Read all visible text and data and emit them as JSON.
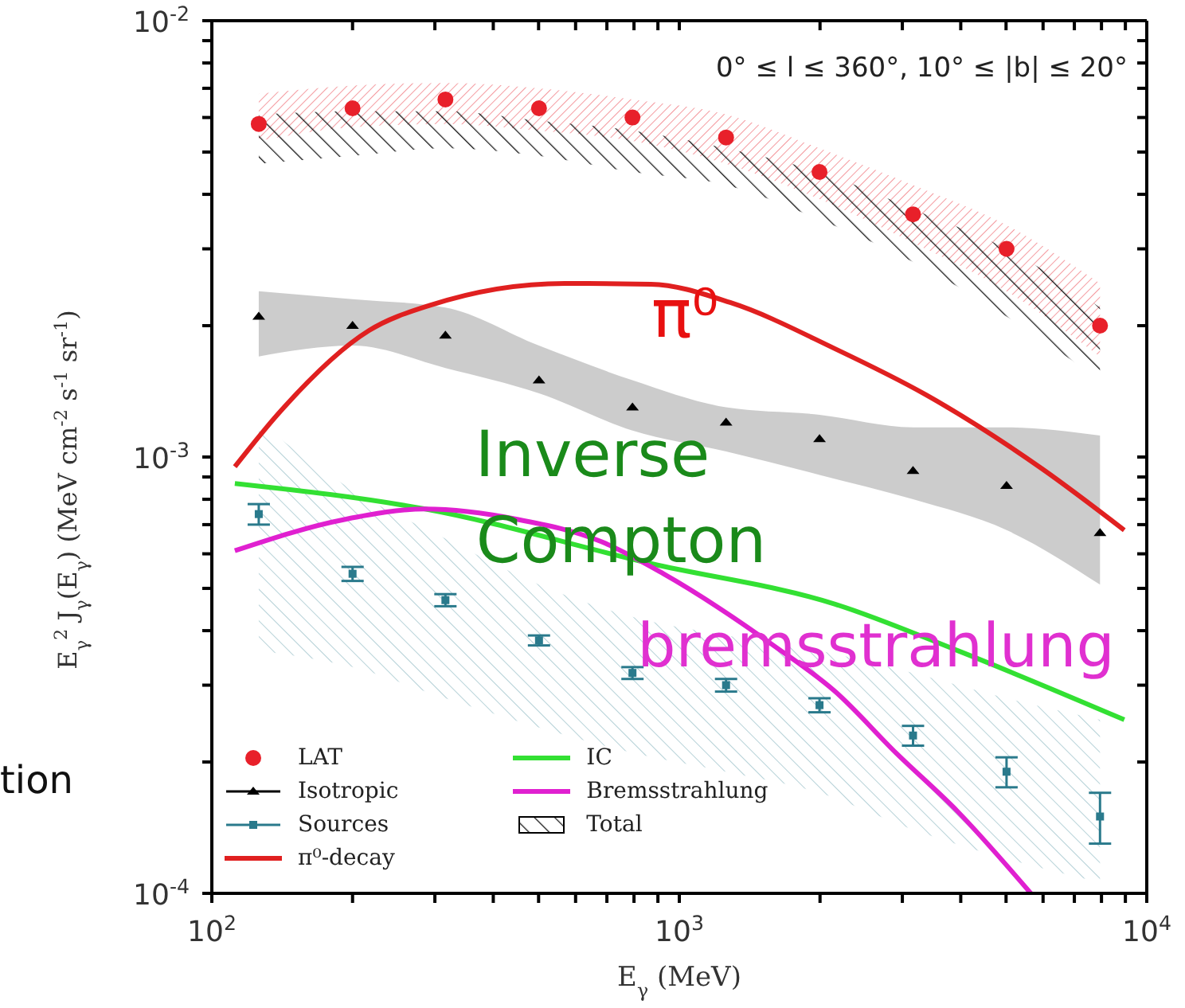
{
  "chart_data": {
    "type": "scatter",
    "log": "xy",
    "legend": "bottom left",
    "xlabel": "E$_{γ}$ (MeV)",
    "ylabel": "E$_{γ}$$^{2}$ J$_{γ}$(E$_{γ}$) (MeV cm$^{-2}$ s$^{-1}$ sr$^{-1}$)",
    "xlim": [
      100,
      10000
    ],
    "ylim": [
      0.0001,
      0.01
    ],
    "xticks": [
      {
        "value": 100,
        "label": "10$^{2}$"
      },
      {
        "value": 200,
        "label": null
      },
      {
        "value": 300,
        "label": null
      },
      {
        "value": 400,
        "label": null
      },
      {
        "value": 500,
        "label": null
      },
      {
        "value": 600,
        "label": null
      },
      {
        "value": 700,
        "label": null
      },
      {
        "value": 800,
        "label": null
      },
      {
        "value": 900,
        "label": null
      },
      {
        "value": 1000,
        "label": "10$^{3}$"
      },
      {
        "value": 2000,
        "label": null
      },
      {
        "value": 3000,
        "label": null
      },
      {
        "value": 4000,
        "label": null
      },
      {
        "value": 5000,
        "label": null
      },
      {
        "value": 6000,
        "label": null
      },
      {
        "value": 7000,
        "label": null
      },
      {
        "value": 8000,
        "label": null
      },
      {
        "value": 9000,
        "label": null
      },
      {
        "value": 10000,
        "label": "10$^{4}$"
      }
    ],
    "yticks": [
      {
        "value": 0.0001,
        "label": "10$^{-4}$"
      },
      {
        "value": 0.0002,
        "label": null
      },
      {
        "value": 0.0003,
        "label": null
      },
      {
        "value": 0.0004,
        "label": null
      },
      {
        "value": 0.0005,
        "label": null
      },
      {
        "value": 0.0006,
        "label": null
      },
      {
        "value": 0.0007,
        "label": null
      },
      {
        "value": 0.0008,
        "label": null
      },
      {
        "value": 0.0009,
        "label": null
      },
      {
        "value": 0.001,
        "label": "10$^{-3}$"
      },
      {
        "value": 0.002,
        "label": null
      },
      {
        "value": 0.003,
        "label": null
      },
      {
        "value": 0.004,
        "label": null
      },
      {
        "value": 0.005,
        "label": null
      },
      {
        "value": 0.006,
        "label": null
      },
      {
        "value": 0.007,
        "label": null
      },
      {
        "value": 0.008,
        "label": null
      },
      {
        "value": 0.009,
        "label": null
      },
      {
        "value": 0.01,
        "label": "10$^{-2}$"
      }
    ],
    "x": [
      126,
      200,
      316,
      501,
      794,
      1259,
      1995,
      3162,
      5012,
      7943
    ],
    "series": [
      {
        "name": "LAT",
        "type": "scatter",
        "marker": "circle",
        "color": "#e8202a",
        "values": [
          0.0058,
          0.0063,
          0.0066,
          0.0063,
          0.006,
          0.0054,
          0.0045,
          0.0036,
          0.003,
          0.002
        ],
        "lower": [
          0.0053,
          0.0057,
          0.0058,
          0.0056,
          0.0053,
          0.0047,
          0.0039,
          0.0031,
          0.0024,
          0.0017
        ],
        "upper": [
          0.0068,
          0.0071,
          0.0072,
          0.007,
          0.0066,
          0.0061,
          0.0051,
          0.0042,
          0.0034,
          0.0025
        ]
      },
      {
        "name": "Isotropic",
        "type": "scatter",
        "marker": "triangle",
        "color": "#000000",
        "values": [
          0.0021,
          0.002,
          0.0019,
          0.0015,
          0.0013,
          0.0012,
          0.0011,
          0.00093,
          0.00086,
          0.00067
        ],
        "lower": [
          0.0017,
          0.0018,
          0.0016,
          0.0014,
          0.00115,
          0.00103,
          0.00091,
          0.0008,
          0.00068,
          0.00051
        ],
        "upper": [
          0.0024,
          0.0023,
          0.0022,
          0.0018,
          0.0015,
          0.0013,
          0.00125,
          0.00117,
          0.00117,
          0.00112
        ]
      },
      {
        "name": "Sources",
        "type": "scatter",
        "marker": "square",
        "color": "#2a7a8c",
        "values": [
          0.00074,
          0.00054,
          0.00047,
          0.00038,
          0.00032,
          0.0003,
          0.00027,
          0.00023,
          0.00019,
          0.00015
        ],
        "errors": [
          4e-05,
          2e-05,
          1.5e-05,
          1e-05,
          1e-05,
          1e-05,
          1e-05,
          1.2e-05,
          1.5e-05,
          2e-05
        ],
        "lower": [
          0.00036,
          0.00033,
          0.00028,
          0.00024,
          0.00021,
          0.00019,
          0.00017,
          0.00014,
          0.00012,
          0.000106
        ],
        "upper": [
          0.0012,
          0.00084,
          0.00065,
          0.00051,
          0.00043,
          0.00039,
          0.00036,
          0.00032,
          0.00028,
          0.00025
        ]
      },
      {
        "name": "π⁰-decay",
        "type": "line",
        "color": "#e02020",
        "x": [
          112,
          139,
          217,
          294,
          569,
          869,
          1285,
          2155,
          3365,
          5970,
          8950
        ],
        "values": [
          0.00095,
          0.00126,
          0.00195,
          0.00223,
          0.0025,
          0.00249,
          0.00226,
          0.00177,
          0.00139,
          0.00094,
          0.00068
        ]
      },
      {
        "name": "IC",
        "type": "line",
        "color": "#33e033",
        "x": [
          112,
          286,
          869,
          2155,
          3940,
          8950
        ],
        "values": [
          0.00087,
          0.00076,
          0.00057,
          0.00046,
          0.00036,
          0.00025
        ]
      },
      {
        "name": "Bremsstrahlung",
        "type": "line",
        "color": "#e020d0",
        "x": [
          112,
          193,
          286,
          450,
          681,
          925,
          1590,
          2155,
          2905,
          3940,
          5650
        ],
        "values": [
          0.00061,
          0.00072,
          0.00076,
          0.00072,
          0.00064,
          0.00054,
          0.00037,
          0.00029,
          0.00021,
          0.000154,
          0.0001
        ]
      },
      {
        "name": "Total",
        "type": "area",
        "color": "#000000",
        "values": [
          null,
          null,
          null,
          null,
          null,
          null,
          null,
          null,
          null,
          null
        ],
        "lower": [
          0.0047,
          0.0049,
          0.0051,
          0.0049,
          0.0045,
          0.0042,
          0.0035,
          0.0028,
          0.0021,
          0.0015
        ],
        "upper": [
          0.0061,
          0.0062,
          0.0062,
          0.0059,
          0.0056,
          0.0051,
          0.0045,
          0.0037,
          0.003,
          0.0022
        ]
      }
    ],
    "annotations": [
      "0° ≤ l ≤ 360°, 10° ≤ |b| ≤ 20°",
      "tion",
      "π⁰",
      "Inverse Compton",
      "bremsstrahlung"
    ]
  }
}
